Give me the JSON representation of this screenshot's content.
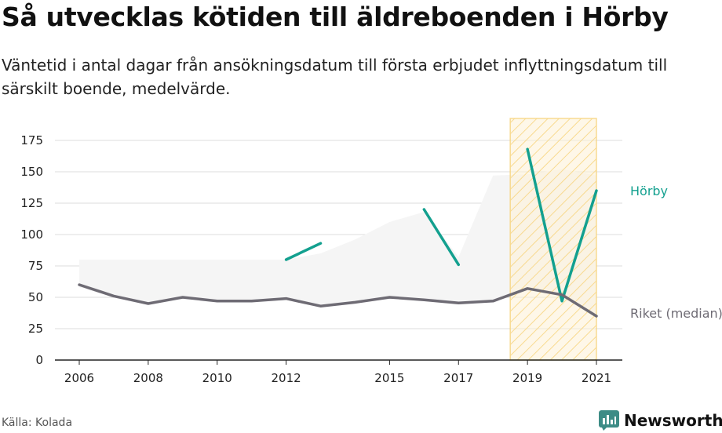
{
  "title": "Så utvecklas kötiden till äldreboenden i Hörby",
  "subtitle": "Väntetid i antal dagar från ansökningsdatum till första erbjudet inflyttningsdatum till särskilt boende, medelvärde.",
  "source": "Källa: Kolada",
  "brand": {
    "name": "Newsworthy",
    "icon": "newsworthy-logo-icon",
    "color": "#3d8c86"
  },
  "colors": {
    "horby": "#13a08f",
    "riket": "#6e6b74",
    "band": "#f5f5f5",
    "highlight_fill": "#fdf0d6",
    "highlight_hatch": "#f7d37a",
    "grid": "#dddddd",
    "axis": "#222222"
  },
  "chart_data": {
    "type": "line",
    "xlim": [
      2006,
      2021
    ],
    "ylim": [
      0,
      175
    ],
    "x_ticks": [
      2006,
      2008,
      2010,
      2012,
      2015,
      2017,
      2019,
      2021
    ],
    "y_ticks": [
      0,
      25,
      50,
      75,
      100,
      125,
      150,
      175
    ],
    "grid": "horizontal",
    "highlight_range": [
      2018.5,
      2021
    ],
    "band": {
      "x": [
        2006,
        2007,
        2008,
        2009,
        2010,
        2011,
        2012,
        2013,
        2014,
        2015,
        2016,
        2017,
        2018,
        2019,
        2020,
        2021
      ],
      "low": [
        58,
        50,
        45,
        49,
        47,
        47,
        48,
        44,
        46,
        49,
        48,
        45,
        47,
        56,
        51,
        35
      ],
      "high": [
        80,
        80,
        80,
        80,
        80,
        80,
        80,
        85,
        96,
        110,
        118,
        82,
        147,
        148,
        152,
        147
      ]
    },
    "series": [
      {
        "name": "Hörby",
        "color": "#13a08f",
        "x": [
          2006,
          2007,
          2008,
          2009,
          2010,
          2011,
          2012,
          2013,
          2014,
          2015,
          2016,
          2017,
          2018,
          2019,
          2020,
          2021
        ],
        "values": [
          null,
          null,
          null,
          null,
          null,
          null,
          80,
          93,
          null,
          null,
          120,
          76,
          null,
          168,
          47,
          135
        ]
      },
      {
        "name": "Riket (median)",
        "color": "#6e6b74",
        "x": [
          2006,
          2007,
          2008,
          2009,
          2010,
          2011,
          2012,
          2013,
          2014,
          2015,
          2016,
          2017,
          2018,
          2019,
          2020,
          2021
        ],
        "values": [
          60,
          51,
          45,
          50,
          47,
          47,
          49,
          43,
          46,
          50,
          48,
          45.5,
          47,
          57,
          52,
          35
        ]
      }
    ]
  }
}
